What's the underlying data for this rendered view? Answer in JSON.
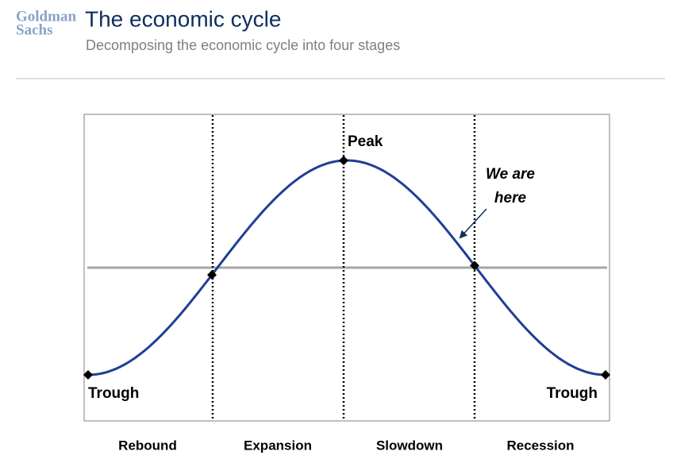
{
  "header": {
    "logo": [
      "Goldman",
      "Sachs"
    ],
    "title": "The economic cycle",
    "subtitle": "Decomposing the economic cycle into four stages"
  },
  "diagram": {
    "peak_label": "Peak",
    "trough_labels": [
      "Trough",
      "Trough"
    ],
    "annotation": [
      "We are",
      "here"
    ],
    "stages": [
      "Rebound",
      "Expansion",
      "Slowdown",
      "Recession"
    ]
  }
}
